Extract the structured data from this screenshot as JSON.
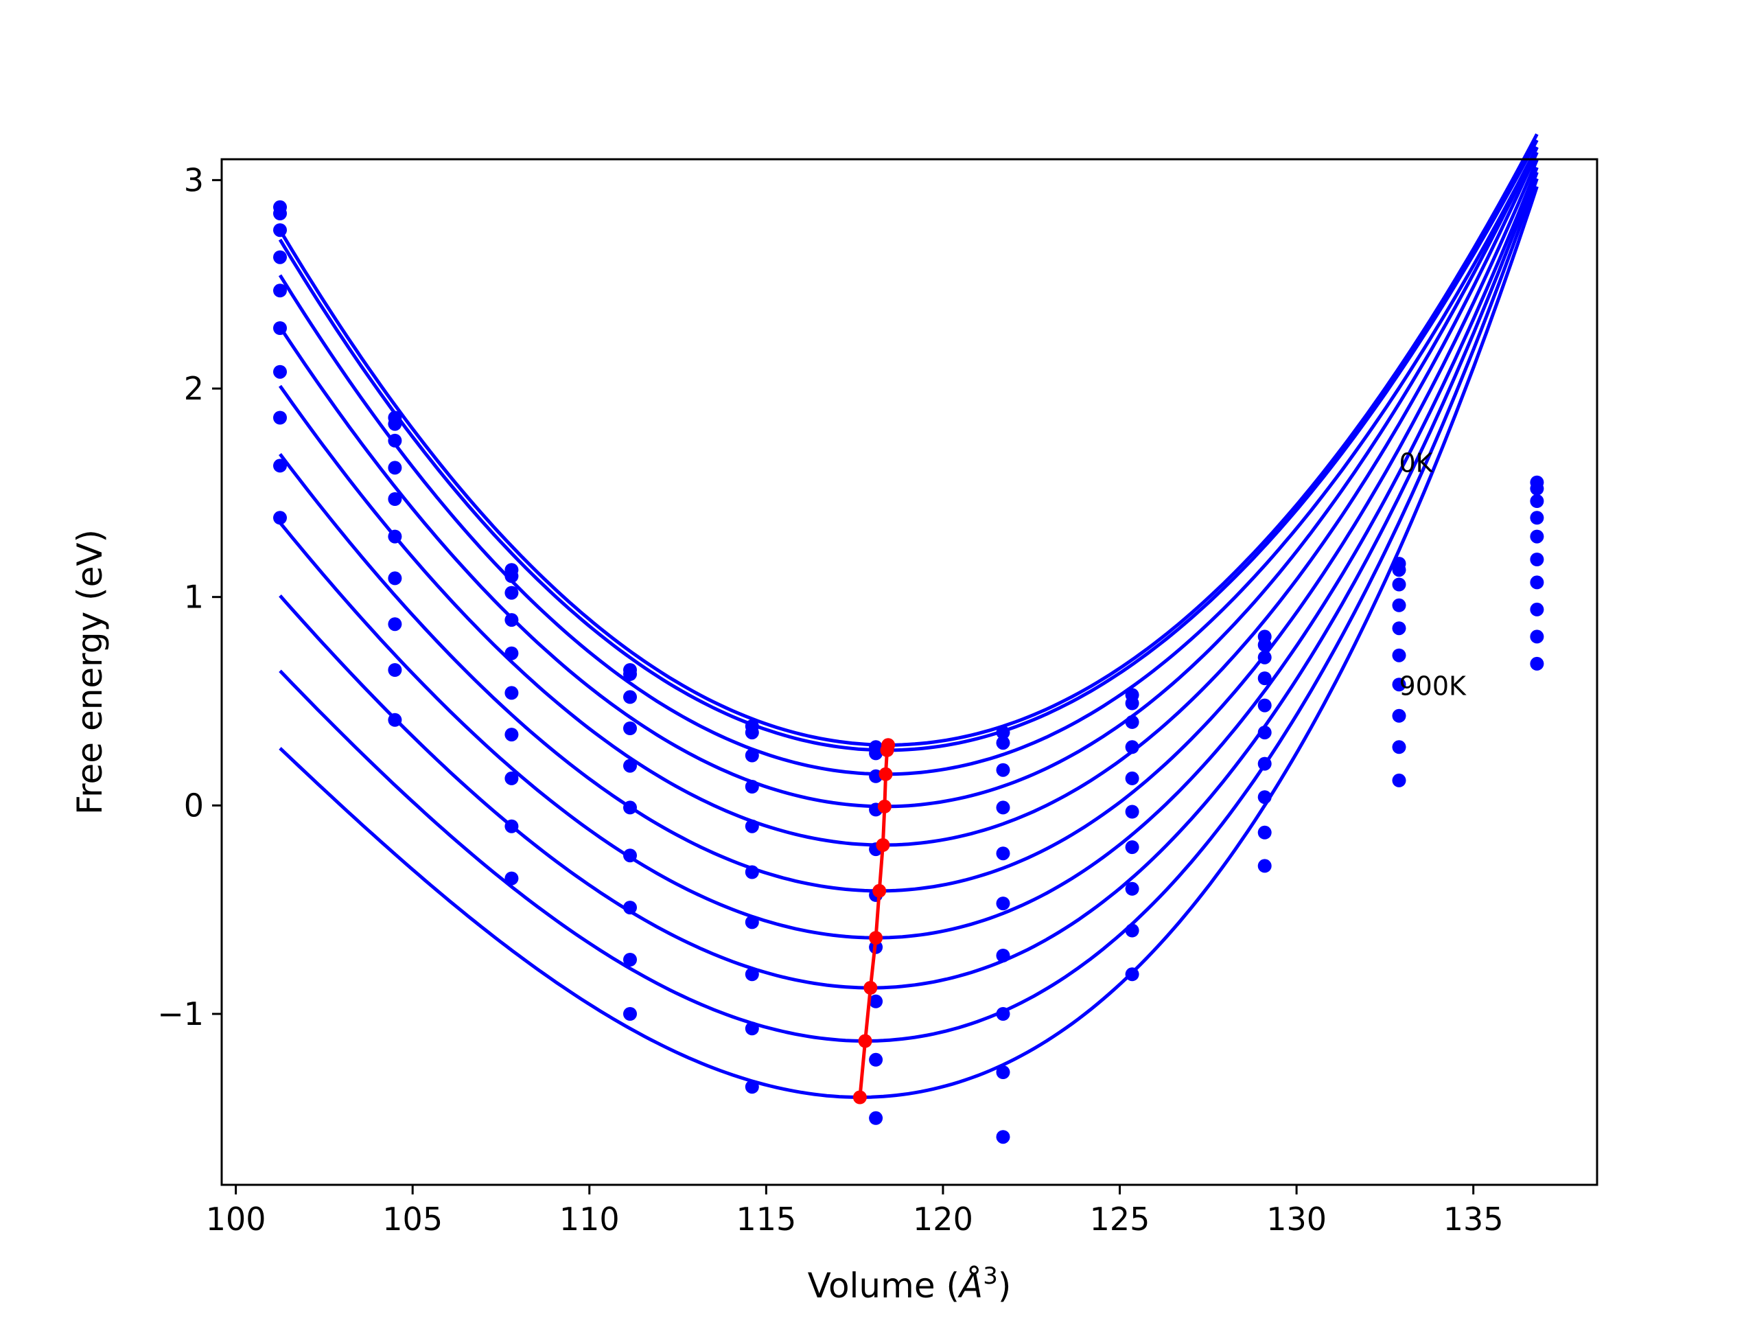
{
  "chart_data": {
    "type": "scatter",
    "title": "",
    "xlabel": "Volume ($\\AA^3$)",
    "xlabel_parts": {
      "prefix": "Volume (",
      "symbol": "Å",
      "sup": "3",
      "suffix": ")"
    },
    "ylabel": "Free energy (eV)",
    "xlim": [
      99.6,
      138.5
    ],
    "ylim": [
      -1.82,
      3.1
    ],
    "xticks": [
      100,
      105,
      110,
      115,
      120,
      125,
      130,
      135
    ],
    "xtick_labels": [
      "100",
      "105",
      "110",
      "115",
      "120",
      "125",
      "130",
      "135"
    ],
    "yticks": [
      -1,
      0,
      1,
      2,
      3
    ],
    "ytick_labels": [
      "−1",
      "0",
      "1",
      "2",
      "3"
    ],
    "grid": false,
    "legend": "none",
    "colors": {
      "series": "#0000ff",
      "fit": "#0000ff",
      "minimum": "#ff0000"
    },
    "x": [
      101.25,
      104.5,
      107.8,
      111.15,
      114.6,
      118.1,
      121.7,
      125.35,
      129.1,
      132.9,
      136.8
    ],
    "series": [
      {
        "values": [
          2.87,
          1.86,
          1.13,
          0.65,
          0.38,
          0.28,
          0.35,
          0.53,
          0.81,
          1.16,
          1.55
        ]
      },
      {
        "values": [
          2.84,
          1.83,
          1.1,
          0.63,
          0.35,
          0.25,
          0.3,
          0.49,
          0.77,
          1.13,
          1.52
        ]
      },
      {
        "values": [
          2.76,
          1.75,
          1.02,
          0.52,
          0.24,
          0.14,
          0.17,
          0.4,
          0.71,
          1.06,
          1.46
        ]
      },
      {
        "values": [
          2.63,
          1.62,
          0.89,
          0.37,
          0.09,
          -0.02,
          -0.01,
          0.28,
          0.61,
          0.96,
          1.38
        ]
      },
      {
        "values": [
          2.47,
          1.47,
          0.73,
          0.19,
          -0.1,
          -0.21,
          -0.23,
          0.13,
          0.48,
          0.85,
          1.29
        ]
      },
      {
        "values": [
          2.29,
          1.29,
          0.54,
          -0.01,
          -0.32,
          -0.43,
          -0.47,
          -0.03,
          0.35,
          0.72,
          1.18
        ]
      },
      {
        "values": [
          2.08,
          1.09,
          0.34,
          -0.24,
          -0.56,
          -0.68,
          -0.72,
          -0.2,
          0.2,
          0.58,
          1.07
        ]
      },
      {
        "values": [
          1.86,
          0.87,
          0.13,
          -0.49,
          -0.81,
          -0.94,
          -1.0,
          -0.4,
          0.04,
          0.43,
          0.94
        ]
      },
      {
        "values": [
          1.63,
          0.65,
          -0.1,
          -0.74,
          -1.07,
          -1.22,
          -1.28,
          -0.6,
          -0.13,
          0.28,
          0.81
        ]
      },
      {
        "values": [
          1.38,
          0.41,
          -0.35,
          -1.0,
          -1.35,
          -1.5,
          -1.59,
          -0.81,
          -0.29,
          0.12,
          0.68
        ]
      }
    ],
    "fit_curves": [
      {
        "v0": 118.45,
        "e0": 0.29,
        "a": 0.00852,
        "b": 1e-05
      },
      {
        "v0": 118.42,
        "e0": 0.265,
        "a": 0.00848,
        "b": 1e-05
      },
      {
        "v0": 118.38,
        "e0": 0.15,
        "a": 0.0085,
        "b": 2e-05
      },
      {
        "v0": 118.35,
        "e0": -0.005,
        "a": 0.00855,
        "b": 4e-05
      },
      {
        "v0": 118.3,
        "e0": -0.19,
        "a": 0.0086,
        "b": 6e-05
      },
      {
        "v0": 118.2,
        "e0": -0.41,
        "a": 0.00865,
        "b": 8e-05
      },
      {
        "v0": 118.1,
        "e0": -0.635,
        "a": 0.0087,
        "b": 0.0001
      },
      {
        "v0": 117.95,
        "e0": -0.875,
        "a": 0.00875,
        "b": 0.00012
      },
      {
        "v0": 117.8,
        "e0": -1.13,
        "a": 0.0088,
        "b": 0.00014
      },
      {
        "v0": 117.65,
        "e0": -1.4,
        "a": 0.00885,
        "b": 0.00016
      }
    ],
    "fit_range": [
      101.25,
      136.8
    ],
    "minimum_path": {
      "x": [
        118.45,
        118.42,
        118.38,
        118.35,
        118.3,
        118.2,
        118.1,
        117.95,
        117.8,
        117.65
      ],
      "y": [
        0.29,
        0.265,
        0.15,
        -0.005,
        -0.19,
        -0.41,
        -0.635,
        -0.875,
        -1.13,
        -1.4
      ]
    },
    "annotations": [
      {
        "text": "0K",
        "x": 132.9,
        "y": 1.6
      },
      {
        "text": "900K",
        "x": 132.9,
        "y": 0.53
      }
    ]
  }
}
